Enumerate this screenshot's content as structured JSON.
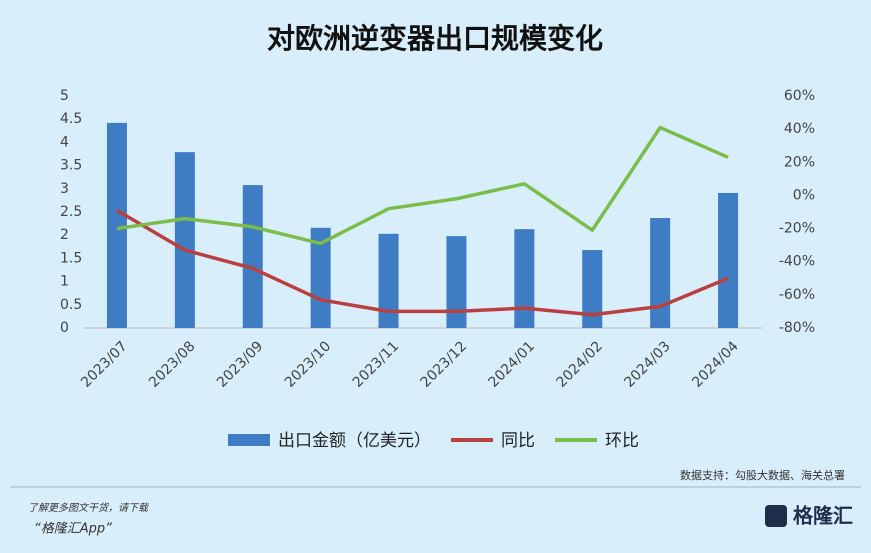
{
  "chart_data": {
    "type": "bar-line",
    "title": "对欧洲逆变器出口规模变化",
    "categories": [
      "2023/07",
      "2023/08",
      "2023/09",
      "2023/10",
      "2023/11",
      "2023/12",
      "2024/01",
      "2024/02",
      "2024/03",
      "2024/04"
    ],
    "series": [
      {
        "name": "出口金额（亿美元）",
        "type": "bar",
        "color": "#3e7cc4",
        "values": [
          4.42,
          3.79,
          3.08,
          2.16,
          2.03,
          1.98,
          2.13,
          1.68,
          2.37,
          2.91
        ]
      },
      {
        "name": "同比",
        "type": "line",
        "axis": "y2",
        "color": "#b9403f",
        "values": [
          -9,
          -33,
          -44,
          -63,
          -70,
          -70,
          -68,
          -72,
          -67,
          -50
        ]
      },
      {
        "name": "环比",
        "type": "line",
        "axis": "y2",
        "color": "#7cbc4a",
        "values": [
          -20,
          -14,
          -19,
          -29,
          -8,
          -2,
          7,
          -21,
          41,
          23
        ]
      }
    ],
    "ylim": [
      0,
      5
    ],
    "yticks": [
      0,
      0.5,
      1,
      1.5,
      2,
      2.5,
      3,
      3.5,
      4,
      4.5,
      5
    ],
    "y2lim": [
      -80,
      60
    ],
    "y2ticks": [
      {
        "value": -80,
        "label": "-80%"
      },
      {
        "value": -60,
        "label": "-60%"
      },
      {
        "value": -40,
        "label": "-40%"
      },
      {
        "value": -20,
        "label": "-20%"
      },
      {
        "value": 0,
        "label": "0%"
      },
      {
        "value": 20,
        "label": "20%"
      },
      {
        "value": 40,
        "label": "40%"
      },
      {
        "value": 60,
        "label": "60%"
      }
    ],
    "grid": false,
    "legend": "bottom",
    "source": "数据支持：勾股大数据、海关总署"
  },
  "footer": {
    "line1": "了解更多图文干货，请下载",
    "line2": "“格隆汇App”",
    "brand": "格隆汇"
  }
}
